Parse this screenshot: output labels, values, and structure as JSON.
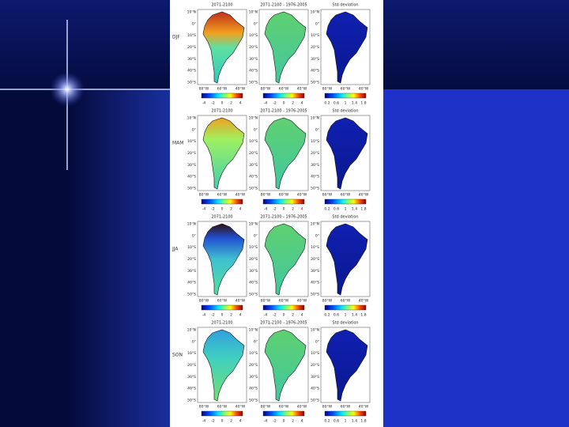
{
  "figure": {
    "columns": [
      {
        "title": "2071-2100",
        "colorbar_labels": [
          "-4",
          "-2",
          "0",
          "2",
          "4"
        ]
      },
      {
        "title": "2071-2100 - 1976-2005",
        "colorbar_labels": [
          "-4",
          "-2",
          "0",
          "2",
          "4"
        ]
      },
      {
        "title": "Std deviation",
        "colorbar_labels": [
          "0.2",
          "0.6",
          "1",
          "1.4",
          "1.8"
        ]
      }
    ],
    "rows": [
      {
        "label": "DJF"
      },
      {
        "label": "MAM"
      },
      {
        "label": "JJA"
      },
      {
        "label": "SON"
      }
    ],
    "lat_labels": [
      "10°N",
      "0°",
      "10°S",
      "20°S",
      "30°S",
      "40°S",
      "50°S"
    ],
    "lon_labels": [
      "80°W",
      "60°W",
      "40°W"
    ]
  }
}
